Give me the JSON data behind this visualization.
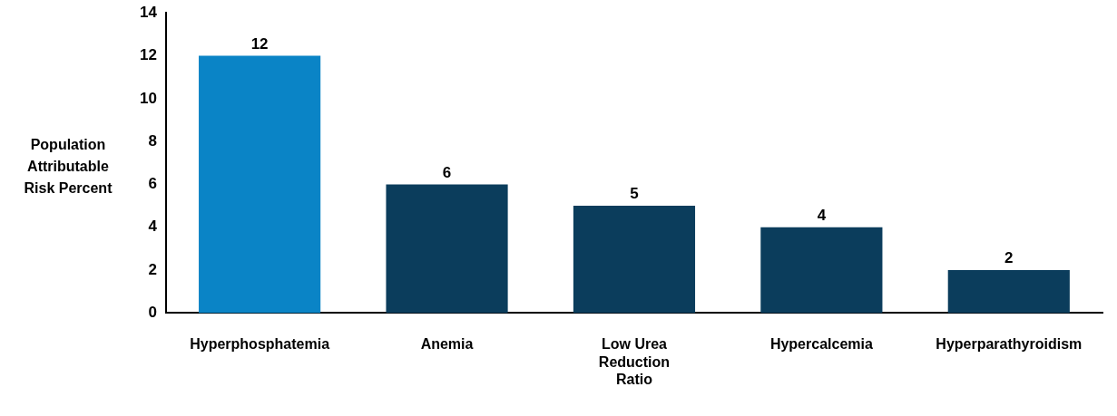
{
  "chart_data": {
    "type": "bar",
    "ylabel": "Population Attributable Risk Percent",
    "categories": [
      "Hyperphosphatemia",
      "Anemia",
      "Low Urea Reduction Ratio",
      "Hypercalcemia",
      "Hyperparathyroidism"
    ],
    "values": [
      12,
      6,
      5,
      4,
      2
    ],
    "colors": [
      "#0a84c6",
      "#0b3d5c",
      "#0b3d5c",
      "#0b3d5c",
      "#0b3d5c"
    ],
    "ylim": [
      0,
      14
    ],
    "yticks": [
      0,
      2,
      4,
      6,
      8,
      10,
      12,
      14
    ],
    "grid": false,
    "legend": false,
    "data_labels": true
  }
}
